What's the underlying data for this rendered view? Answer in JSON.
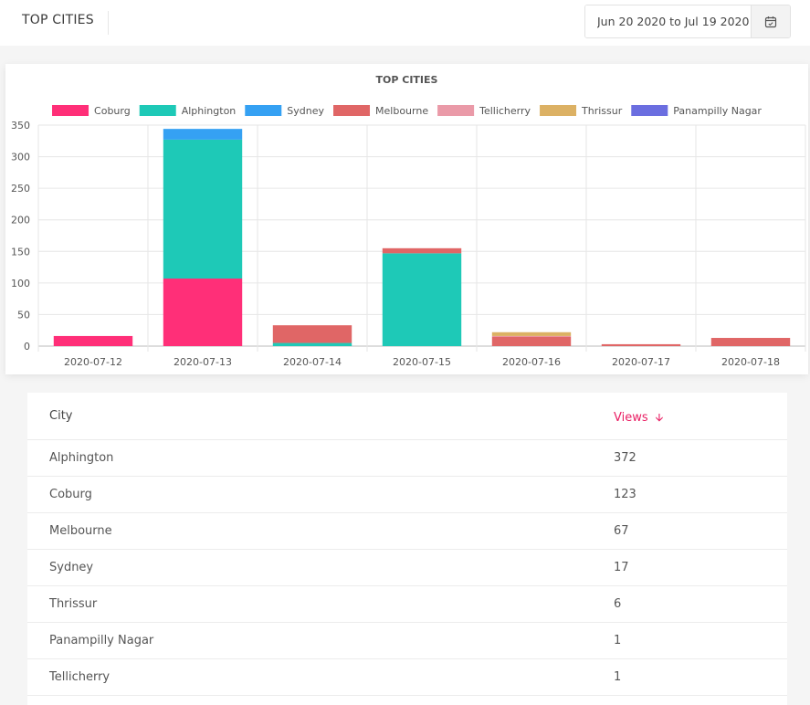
{
  "header": {
    "title": "TOP CITIES",
    "date_range_value": "Jun 20 2020 to Jul 19 2020"
  },
  "icons": {
    "calendar": "calendar-icon",
    "sort": "arrow-down-icon"
  },
  "chart_data": {
    "type": "bar",
    "stacked": true,
    "title": "TOP CITIES",
    "categories": [
      "2020-07-12",
      "2020-07-13",
      "2020-07-14",
      "2020-07-15",
      "2020-07-16",
      "2020-07-17",
      "2020-07-18"
    ],
    "ylim": [
      0,
      350
    ],
    "yticks": [
      0,
      50,
      100,
      150,
      200,
      250,
      300,
      350
    ],
    "legend_position": "top",
    "series": [
      {
        "name": "Coburg",
        "color": "#ff2f78",
        "values": [
          16,
          107,
          0,
          0,
          0,
          0,
          0
        ]
      },
      {
        "name": "Alphington",
        "color": "#1ec9b7",
        "values": [
          0,
          220,
          5,
          147,
          0,
          0,
          0
        ]
      },
      {
        "name": "Sydney",
        "color": "#35a1f3",
        "values": [
          0,
          17,
          0,
          0,
          0,
          0,
          0
        ]
      },
      {
        "name": "Melbourne",
        "color": "#e06666",
        "values": [
          0,
          0,
          28,
          8,
          15,
          3,
          13
        ]
      },
      {
        "name": "Tellicherry",
        "color": "#ea9aa8",
        "values": [
          0,
          0,
          0,
          0,
          1,
          0,
          0
        ]
      },
      {
        "name": "Thrissur",
        "color": "#dcb164",
        "values": [
          0,
          0,
          0,
          0,
          6,
          0,
          0
        ]
      },
      {
        "name": "Panampilly Nagar",
        "color": "#6b6ee0",
        "values": [
          0,
          0,
          0,
          0,
          0,
          0,
          0
        ]
      }
    ]
  },
  "table": {
    "headers": {
      "city": "City",
      "views": "Views"
    },
    "rows": [
      {
        "city": "Alphington",
        "views": "372"
      },
      {
        "city": "Coburg",
        "views": "123"
      },
      {
        "city": "Melbourne",
        "views": "67"
      },
      {
        "city": "Sydney",
        "views": "17"
      },
      {
        "city": "Thrissur",
        "views": "6"
      },
      {
        "city": "Panampilly Nagar",
        "views": "1"
      },
      {
        "city": "Tellicherry",
        "views": "1"
      }
    ]
  }
}
